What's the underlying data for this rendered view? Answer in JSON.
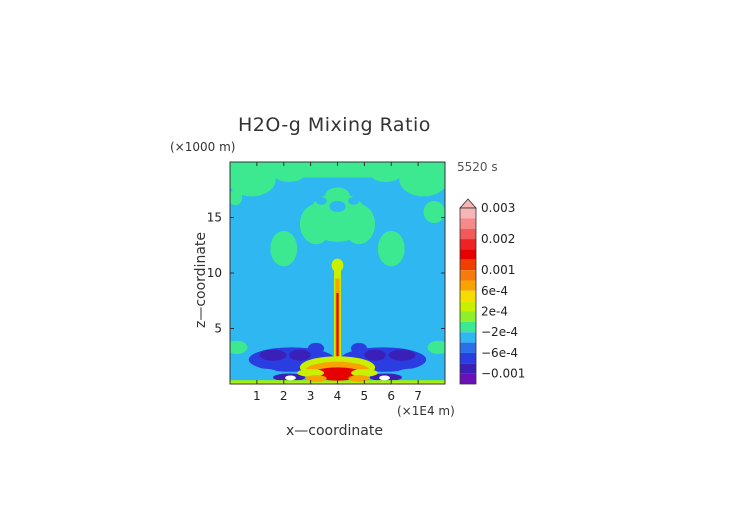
{
  "chart_data": {
    "type": "heatmap",
    "title": "H2O-g Mixing Ratio",
    "time_label": "5520 s",
    "xlabel": "x—coordinate",
    "ylabel": "z—coordinate",
    "x_unit": "(×1E4 m)",
    "z_unit": "(×1000 m)",
    "xlim": [
      0,
      8
    ],
    "zlim": [
      0,
      20
    ],
    "x_ticks": [
      1,
      2,
      3,
      4,
      5,
      6,
      7
    ],
    "z_ticks": [
      5,
      10,
      15
    ],
    "colorbar": {
      "levels": [
        {
          "label": "0.003",
          "color": "#f7b5b5"
        },
        {
          "label": "",
          "color": "#f48a8a"
        },
        {
          "label": "",
          "color": "#f25a5a"
        },
        {
          "label": "0.002",
          "color": "#ee2222"
        },
        {
          "label": "",
          "color": "#e60000"
        },
        {
          "label": "",
          "color": "#f04000"
        },
        {
          "label": "0.001",
          "color": "#f67a10"
        },
        {
          "label": "",
          "color": "#f9a300"
        },
        {
          "label": "6e-4",
          "color": "#f6dc00"
        },
        {
          "label": "",
          "color": "#c8f000"
        },
        {
          "label": "2e-4",
          "color": "#8ef02a"
        },
        {
          "label": "",
          "color": "#3ce890"
        },
        {
          "label": "−2e-4",
          "color": "#2fb7f2"
        },
        {
          "label": "",
          "color": "#2a70e8"
        },
        {
          "label": "−6e-4",
          "color": "#2a3de0"
        },
        {
          "label": "",
          "color": "#3a1fb8"
        },
        {
          "label": "−0.001",
          "color": "#6a10b8"
        }
      ],
      "extend": "max"
    },
    "field_colors": {
      "background": "#2fb7f2",
      "upper_cloud": "#3ce890",
      "plume_core": "#e60000",
      "plume_edge": "#f9a300",
      "plume_halo": "#c8f000",
      "dry_band": "#2a3de0",
      "dry_core": "#3a1fb8",
      "surface": "#8ef02a",
      "white_spot": "#ffffff"
    }
  }
}
